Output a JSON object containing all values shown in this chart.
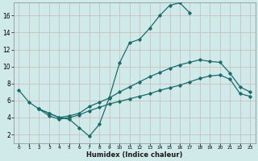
{
  "xlabel": "Humidex (Indice chaleur)",
  "bg_color": "#d0eaea",
  "grid_color": "#c8b8b8",
  "line_color": "#1a6b6b",
  "xlim": [
    -0.5,
    23.5
  ],
  "ylim": [
    1,
    17.5
  ],
  "xticks": [
    0,
    1,
    2,
    3,
    4,
    5,
    6,
    7,
    8,
    9,
    10,
    11,
    12,
    13,
    14,
    15,
    16,
    17,
    18,
    19,
    20,
    21,
    22,
    23
  ],
  "yticks": [
    2,
    4,
    6,
    8,
    10,
    12,
    14,
    16
  ],
  "line1_x": [
    0,
    1,
    2,
    3,
    4,
    5,
    6,
    7,
    8,
    9,
    10,
    11,
    12,
    13,
    14,
    15,
    16,
    17
  ],
  "line1_y": [
    7.2,
    5.8,
    5.0,
    4.5,
    4.0,
    3.8,
    2.8,
    1.8,
    3.2,
    6.4,
    10.4,
    12.8,
    13.2,
    14.5,
    16.0,
    17.2,
    17.5,
    16.3
  ],
  "line2_x": [
    2,
    3,
    4,
    5,
    6,
    7,
    8,
    9,
    10,
    11,
    12,
    13,
    14,
    15,
    16,
    17,
    18,
    19,
    20,
    21,
    22,
    23
  ],
  "line2_y": [
    5.0,
    4.5,
    4.0,
    4.2,
    4.5,
    5.3,
    5.8,
    6.3,
    7.0,
    7.6,
    8.2,
    8.8,
    9.3,
    9.8,
    10.2,
    10.5,
    10.8,
    10.6,
    10.5,
    9.2,
    7.6,
    7.0
  ],
  "line3_x": [
    2,
    3,
    4,
    5,
    6,
    7,
    8,
    9,
    10,
    11,
    12,
    13,
    14,
    15,
    16,
    17,
    18,
    19,
    20,
    21,
    22,
    23
  ],
  "line3_y": [
    5.0,
    4.2,
    3.8,
    4.0,
    4.3,
    4.8,
    5.2,
    5.6,
    5.9,
    6.2,
    6.5,
    6.8,
    7.2,
    7.5,
    7.8,
    8.2,
    8.6,
    8.9,
    9.0,
    8.5,
    6.8,
    6.5
  ]
}
